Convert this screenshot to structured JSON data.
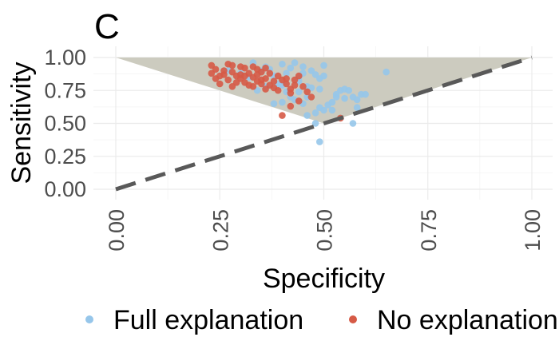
{
  "panel_label": "C",
  "chart_data": {
    "type": "scatter",
    "xlabel": "Specificity",
    "ylabel": "Sensitivity",
    "xlim": [
      0,
      1
    ],
    "ylim": [
      0,
      1
    ],
    "x_ticks": [
      "0.00",
      "0.25",
      "0.50",
      "0.75",
      "1.00"
    ],
    "y_ticks": [
      "0.00",
      "0.25",
      "0.50",
      "0.75",
      "1.00"
    ],
    "grid": true,
    "legend_position": "bottom",
    "reference_line": {
      "from": [
        0,
        0
      ],
      "to": [
        1,
        1
      ],
      "style": "dashed",
      "color": "#595959"
    },
    "shaded_region": {
      "vertices": [
        [
          0,
          1
        ],
        [
          1,
          1
        ],
        [
          0.5,
          0.5
        ]
      ],
      "color": "#cccbbf"
    },
    "series": [
      {
        "name": "Full explanation",
        "color": "#96c6ea",
        "points": [
          [
            0.33,
            0.96
          ],
          [
            0.36,
            0.93
          ],
          [
            0.4,
            0.95
          ],
          [
            0.43,
            0.96
          ],
          [
            0.45,
            0.93
          ],
          [
            0.5,
            0.94
          ],
          [
            0.45,
            0.88
          ],
          [
            0.48,
            0.87
          ],
          [
            0.49,
            0.84
          ],
          [
            0.5,
            0.86
          ],
          [
            0.44,
            0.82
          ],
          [
            0.46,
            0.78
          ],
          [
            0.47,
            0.77
          ],
          [
            0.49,
            0.76
          ],
          [
            0.41,
            0.74
          ],
          [
            0.42,
            0.7
          ],
          [
            0.43,
            0.68
          ],
          [
            0.4,
            0.66
          ],
          [
            0.38,
            0.65
          ],
          [
            0.45,
            0.65
          ],
          [
            0.46,
            0.7
          ],
          [
            0.49,
            0.62
          ],
          [
            0.5,
            0.6
          ],
          [
            0.48,
            0.58
          ],
          [
            0.46,
            0.56
          ],
          [
            0.51,
            0.64
          ],
          [
            0.52,
            0.66
          ],
          [
            0.53,
            0.7
          ],
          [
            0.54,
            0.75
          ],
          [
            0.55,
            0.76
          ],
          [
            0.56,
            0.75
          ],
          [
            0.57,
            0.7
          ],
          [
            0.58,
            0.68
          ],
          [
            0.59,
            0.72
          ],
          [
            0.6,
            0.72
          ],
          [
            0.58,
            0.62
          ],
          [
            0.57,
            0.5
          ],
          [
            0.48,
            0.5
          ],
          [
            0.49,
            0.36
          ],
          [
            0.65,
            0.89
          ],
          [
            0.35,
            0.9
          ],
          [
            0.38,
            0.86
          ],
          [
            0.39,
            0.8
          ],
          [
            0.36,
            0.78
          ],
          [
            0.34,
            0.75
          ],
          [
            0.42,
            0.92
          ],
          [
            0.44,
            0.85
          ],
          [
            0.37,
            0.91
          ],
          [
            0.41,
            0.88
          ],
          [
            0.47,
            0.9
          ],
          [
            0.3,
            0.88
          ],
          [
            0.32,
            0.85
          ],
          [
            0.27,
            0.9
          ],
          [
            0.53,
            0.72
          ],
          [
            0.55,
            0.69
          ],
          [
            0.52,
            0.6
          ],
          [
            0.44,
            0.74
          ],
          [
            0.4,
            0.79
          ]
        ]
      },
      {
        "name": "No explanation",
        "color": "#d65a46",
        "points": [
          [
            0.23,
            0.94
          ],
          [
            0.24,
            0.91
          ],
          [
            0.23,
            0.88
          ],
          [
            0.25,
            0.86
          ],
          [
            0.24,
            0.84
          ],
          [
            0.26,
            0.87
          ],
          [
            0.27,
            0.83
          ],
          [
            0.28,
            0.89
          ],
          [
            0.29,
            0.86
          ],
          [
            0.3,
            0.84
          ],
          [
            0.31,
            0.81
          ],
          [
            0.32,
            0.88
          ],
          [
            0.33,
            0.85
          ],
          [
            0.34,
            0.82
          ],
          [
            0.35,
            0.8
          ],
          [
            0.36,
            0.84
          ],
          [
            0.37,
            0.79
          ],
          [
            0.38,
            0.82
          ],
          [
            0.39,
            0.86
          ],
          [
            0.4,
            0.83
          ],
          [
            0.41,
            0.8
          ],
          [
            0.42,
            0.76
          ],
          [
            0.43,
            0.79
          ],
          [
            0.44,
            0.86
          ],
          [
            0.45,
            0.78
          ],
          [
            0.46,
            0.74
          ],
          [
            0.47,
            0.7
          ],
          [
            0.44,
            0.67
          ],
          [
            0.42,
            0.63
          ],
          [
            0.4,
            0.56
          ],
          [
            0.54,
            0.54
          ],
          [
            0.27,
            0.95
          ],
          [
            0.28,
            0.94
          ],
          [
            0.3,
            0.93
          ],
          [
            0.31,
            0.92
          ],
          [
            0.33,
            0.93
          ],
          [
            0.34,
            0.91
          ],
          [
            0.35,
            0.89
          ],
          [
            0.36,
            0.92
          ],
          [
            0.37,
            0.88
          ],
          [
            0.26,
            0.9
          ],
          [
            0.29,
            0.81
          ],
          [
            0.32,
            0.79
          ],
          [
            0.33,
            0.78
          ],
          [
            0.35,
            0.83
          ],
          [
            0.38,
            0.77
          ],
          [
            0.41,
            0.84
          ],
          [
            0.43,
            0.83
          ],
          [
            0.3,
            0.87
          ],
          [
            0.25,
            0.8
          ],
          [
            0.28,
            0.78
          ],
          [
            0.31,
            0.86
          ],
          [
            0.34,
            0.87
          ],
          [
            0.39,
            0.75
          ],
          [
            0.36,
            0.76
          ],
          [
            0.42,
            0.73
          ]
        ]
      }
    ]
  }
}
